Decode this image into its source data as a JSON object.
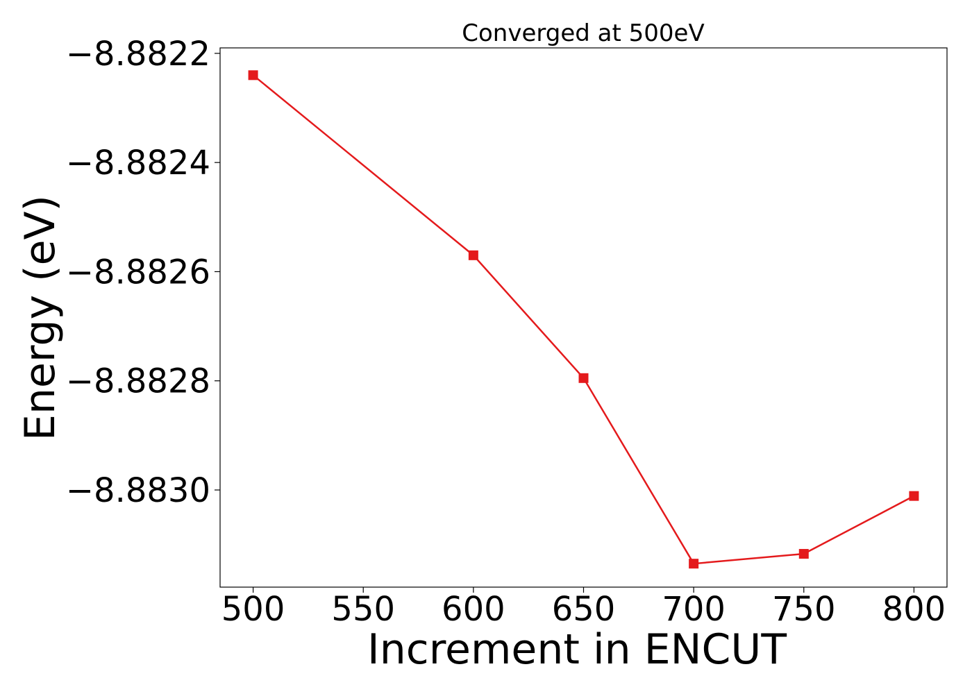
{
  "chart_data": {
    "type": "line",
    "title": "Converged at 500eV",
    "xlabel": "Increment in ENCUT",
    "ylabel": "Energy (eV)",
    "x": [
      500,
      600,
      650,
      700,
      750,
      800
    ],
    "series": [
      {
        "values": [
          -8.88224,
          -8.88257,
          -8.882795,
          -8.883135,
          -8.883117,
          -8.883011
        ],
        "color": "#e41a1c",
        "marker": "square"
      }
    ],
    "xlim": [
      485,
      815
    ],
    "ylim": [
      -8.883178,
      -8.88219
    ],
    "xticks": [
      500,
      550,
      600,
      650,
      700,
      750,
      800
    ],
    "xtick_labels": [
      "500",
      "550",
      "600",
      "650",
      "700",
      "750",
      "800"
    ],
    "yticks": [
      -8.8822,
      -8.8824,
      -8.8826,
      -8.8828,
      -8.883
    ],
    "ytick_labels": [
      "−8.8822",
      "−8.8824",
      "−8.8826",
      "−8.8828",
      "−8.8830"
    ],
    "grid": false,
    "legend": "none"
  }
}
